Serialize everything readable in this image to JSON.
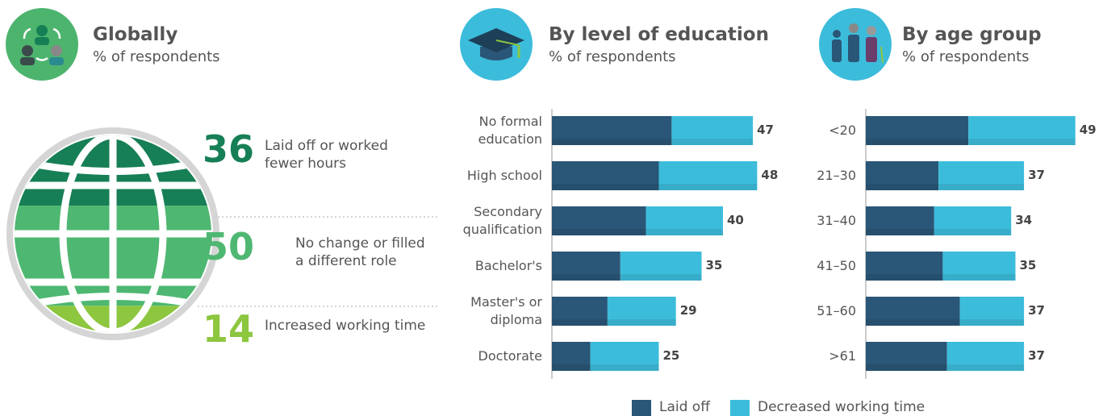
{
  "chart_data": [
    {
      "type": "globe",
      "title": "Globally",
      "subtitle": "% of respondents",
      "categories": [
        "Laid off or worked fewer hours",
        "No change or filled a different role",
        "Increased working time"
      ],
      "values": [
        36,
        50,
        14
      ],
      "colors": [
        "#177f55",
        "#4eb771",
        "#8dc63f"
      ]
    },
    {
      "type": "stacked-bar",
      "title": "By level of education",
      "subtitle": "% of respondents",
      "categories": [
        "No formal education",
        "High school",
        "Secondary qualification",
        "Bachelor's",
        "Master's or diploma",
        "Doctorate"
      ],
      "series": [
        {
          "values": [
            28,
            25,
            22,
            16,
            13,
            9
          ]
        },
        {
          "values": [
            19,
            23,
            18,
            19,
            16,
            16
          ]
        }
      ],
      "totals": [
        47,
        48,
        40,
        35,
        29,
        25
      ],
      "xlim": [
        0,
        50
      ]
    },
    {
      "type": "stacked-bar",
      "title": "By age group",
      "subtitle": "% of respondents",
      "categories": [
        "<20",
        "21–30",
        "31–40",
        "41–50",
        "51–60",
        ">61"
      ],
      "series": [
        {
          "values": [
            24,
            17,
            16,
            18,
            22,
            19
          ]
        },
        {
          "values": [
            25,
            20,
            18,
            17,
            15,
            18
          ]
        }
      ],
      "totals": [
        49,
        37,
        34,
        35,
        37,
        37
      ],
      "xlim": [
        0,
        50
      ]
    }
  ],
  "legend": [
    {
      "name": "Laid off",
      "color": "#2a5677"
    },
    {
      "name": "Decreased working time",
      "color": "#3cbcdb"
    }
  ]
}
